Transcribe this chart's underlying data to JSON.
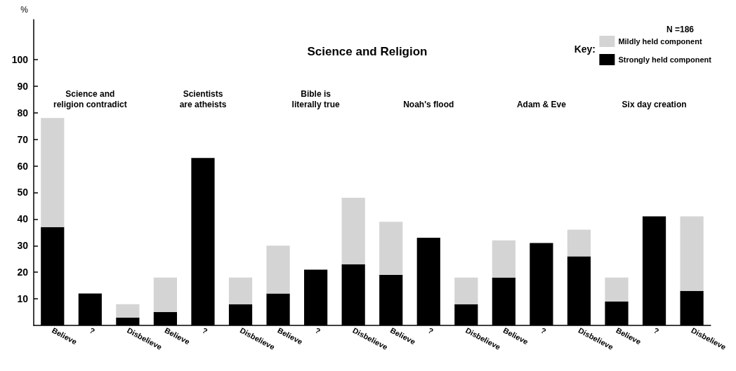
{
  "chart_data": {
    "type": "bar",
    "title": "Science and Religion",
    "ylabel": "%",
    "legend_title": "Key:",
    "categories": [
      "Believe",
      "?",
      "Disbelieve",
      "Believe",
      "?",
      "Disbelieve",
      "Believe",
      "?",
      "Disbelieve",
      "Believe",
      "?",
      "Disbelieve",
      "Believe",
      "?",
      "Disbelieve",
      "Believe",
      "?",
      "Disbelieve"
    ],
    "series": [
      {
        "name": "Strongly held component",
        "color": "#000000",
        "values": [
          37,
          12,
          3,
          5,
          63,
          8,
          12,
          21,
          23,
          19,
          33,
          8,
          18,
          31,
          26,
          9,
          41,
          13
        ]
      },
      {
        "name": "Mildly held component",
        "color": "#d4d4d4",
        "values": [
          41,
          0,
          5,
          13,
          0,
          10,
          18,
          0,
          25,
          20,
          0,
          10,
          14,
          0,
          10,
          9,
          0,
          28
        ]
      }
    ],
    "stacked": true,
    "ylim": [
      0,
      115
    ],
    "yticks": [
      10,
      20,
      30,
      40,
      50,
      60,
      70,
      80,
      90,
      100
    ],
    "grid": false,
    "legend": "top right",
    "annotations": [
      "Science and\nreligion contradict",
      "Scientists\nare atheists",
      "Bible is\nliterally true",
      "Noah's flood",
      "Adam & Eve",
      "Six day creation",
      "N =186"
    ]
  }
}
